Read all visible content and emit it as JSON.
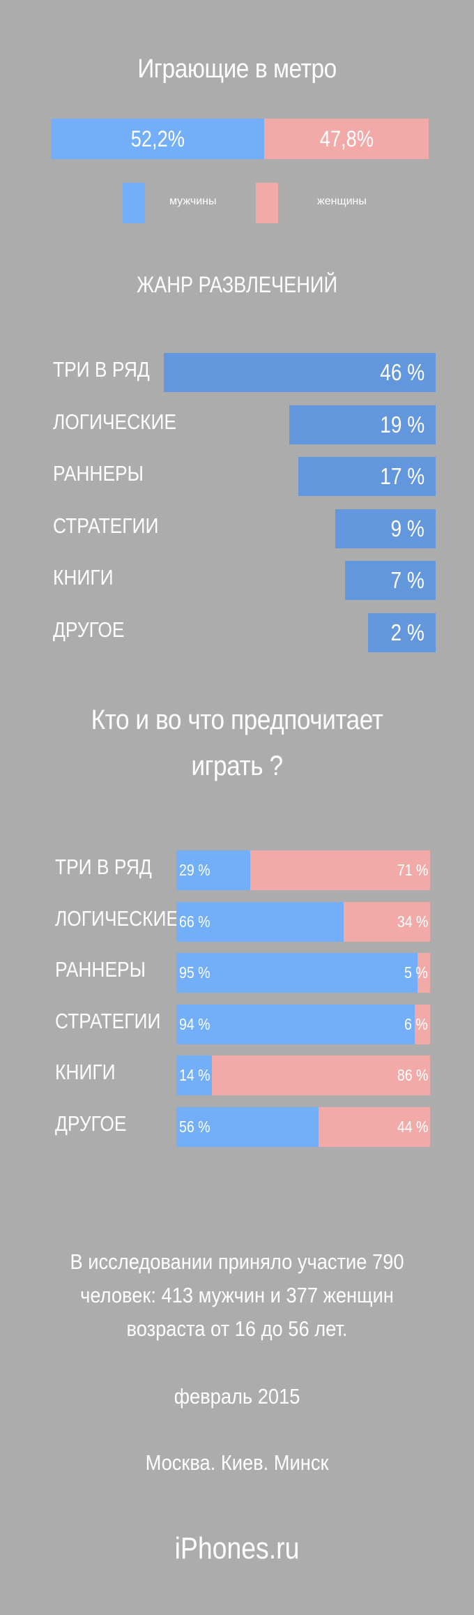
{
  "title": "Играющие в метро",
  "gender": {
    "men": {
      "value": 52.2,
      "label": "52,2%",
      "color": "#73aef9",
      "legend": "мужчины"
    },
    "women": {
      "value": 47.8,
      "label": "47,8%",
      "color": "#f2aaa8",
      "legend": "женщины"
    }
  },
  "genres_title": "ЖАНР РАЗВЛЕЧЕНИЙ",
  "who_title": [
    "Кто и во что предпочитает",
    "играть ?"
  ],
  "chart_data": [
    {
      "type": "bar",
      "title": "Играющие в метро",
      "categories": [
        "мужчины",
        "женщины"
      ],
      "values": [
        52.2,
        47.8
      ],
      "labels": [
        "52,2%",
        "47,8%"
      ]
    },
    {
      "type": "bar",
      "title": "ЖАНР РАЗВЛЕЧЕНИЙ",
      "categories": [
        "ТРИ В РЯД",
        "ЛОГИЧЕСКИЕ",
        "РАННЕРЫ",
        "СТРАТЕГИИ",
        "КНИГИ",
        "ДРУГОЕ"
      ],
      "values": [
        46,
        19,
        17,
        9,
        7,
        2
      ],
      "labels": [
        "46 %",
        "19 %",
        "17 %",
        "9 %",
        "7 %",
        "2 %"
      ]
    },
    {
      "type": "bar",
      "title": "Кто и во что предпочитает играть ?",
      "categories": [
        "ТРИ В РЯД",
        "ЛОГИЧЕСКИЕ",
        "РАННЕРЫ",
        "СТРАТЕГИИ",
        "КНИГИ",
        "ДРУГОЕ"
      ],
      "series": [
        {
          "name": "мужчины",
          "values": [
            29,
            66,
            95,
            94,
            14,
            56
          ],
          "labels": [
            "29 %",
            "66 %",
            "95 %",
            "94 %",
            "14 %",
            "56 %"
          ]
        },
        {
          "name": "женщины",
          "values": [
            71,
            34,
            5,
            6,
            86,
            44
          ],
          "labels": [
            "71 %",
            "34 %",
            "5 %",
            "6 %",
            "86 %",
            "44 %"
          ]
        }
      ]
    }
  ],
  "info_lines": [
    "В исследовании приняло участие 790",
    "человек: 413 мужчин и 377 женщин",
    "возраста от 16 до 56 лет."
  ],
  "date": "февраль 2015",
  "cities": "Москва. Киев. Минск",
  "site": "iPhones.ru"
}
